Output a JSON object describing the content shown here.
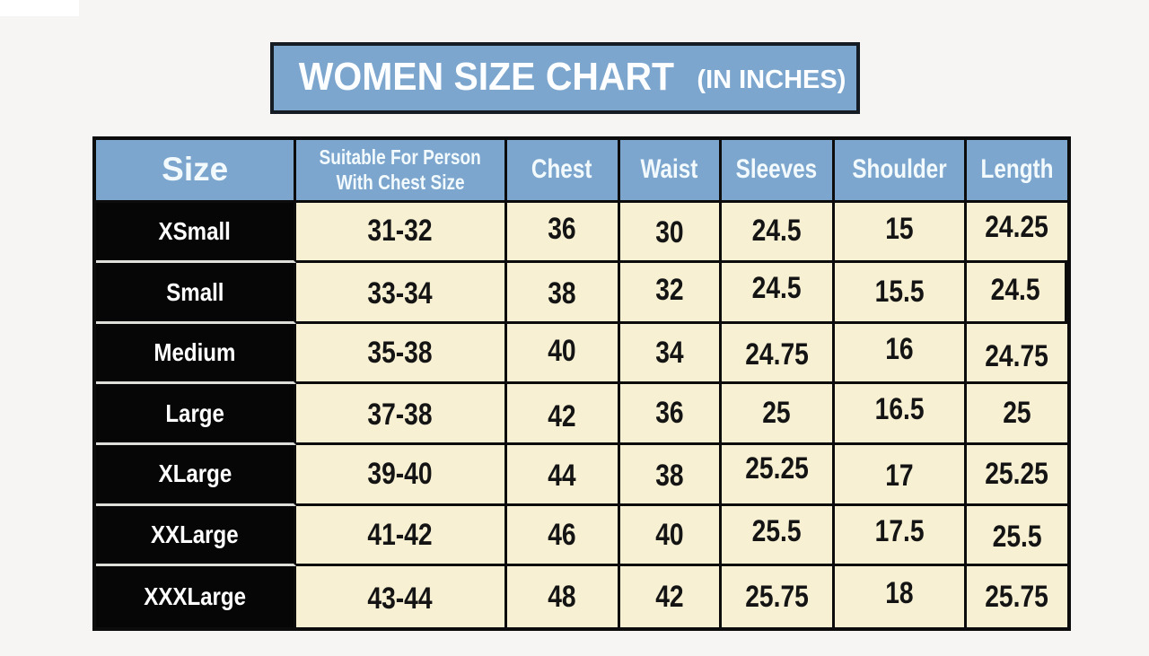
{
  "colors": {
    "page_background": "#f6f5f3",
    "banner_blue": "#7ca6ce",
    "border_dark": "#0c0c0c",
    "size_cell_black": "#060606",
    "value_cell_cream": "#f7f0d2",
    "header_text": "#ffffff",
    "value_text": "#141414"
  },
  "title": {
    "main": "WOMEN SIZE CHART",
    "unit_note": "(IN INCHES)"
  },
  "table": {
    "header": {
      "size": "Size",
      "suitable_line1": "Suitable For Person",
      "suitable_line2": "With Chest Size",
      "chest": "Chest",
      "waist": "Waist",
      "sleeves": "Sleeves",
      "shoulder": "Shoulder",
      "length": "Length"
    },
    "rows": [
      {
        "size": "XSmall",
        "suitable": "31-32",
        "chest": "36",
        "waist": "30",
        "sleeves": "24.5",
        "shoulder": "15",
        "length": "24.25"
      },
      {
        "size": "Small",
        "suitable": "33-34",
        "chest": "38",
        "waist": "32",
        "sleeves": "24.5",
        "shoulder": "15.5",
        "length": "24.5"
      },
      {
        "size": "Medium",
        "suitable": "35-38",
        "chest": "40",
        "waist": "34",
        "sleeves": "24.75",
        "shoulder": "16",
        "length": "24.75"
      },
      {
        "size": "Large",
        "suitable": "37-38",
        "chest": "42",
        "waist": "36",
        "sleeves": "25",
        "shoulder": "16.5",
        "length": "25"
      },
      {
        "size": "XLarge",
        "suitable": "39-40",
        "chest": "44",
        "waist": "38",
        "sleeves": "25.25",
        "shoulder": "17",
        "length": "25.25"
      },
      {
        "size": "XXLarge",
        "suitable": "41-42",
        "chest": "46",
        "waist": "40",
        "sleeves": "25.5",
        "shoulder": "17.5",
        "length": "25.5"
      },
      {
        "size": "XXXLarge",
        "suitable": "43-44",
        "chest": "48",
        "waist": "42",
        "sleeves": "25.75",
        "shoulder": "18",
        "length": "25.75"
      }
    ]
  },
  "chart_data": {
    "type": "table",
    "title": "WOMEN SIZE CHART (IN INCHES)",
    "columns": [
      "Size",
      "Suitable For Person With Chest Size",
      "Chest",
      "Waist",
      "Sleeves",
      "Shoulder",
      "Length"
    ],
    "rows": [
      [
        "XSmall",
        "31-32",
        36,
        30,
        24.5,
        15,
        24.25
      ],
      [
        "Small",
        "33-34",
        38,
        32,
        24.5,
        15.5,
        24.5
      ],
      [
        "Medium",
        "35-38",
        40,
        34,
        24.75,
        16,
        24.75
      ],
      [
        "Large",
        "37-38",
        42,
        36,
        25,
        16.5,
        25
      ],
      [
        "XLarge",
        "39-40",
        44,
        38,
        25.25,
        17,
        25.25
      ],
      [
        "XXLarge",
        "41-42",
        46,
        40,
        25.5,
        17.5,
        25.5
      ],
      [
        "XXXLarge",
        "43-44",
        48,
        42,
        25.75,
        18,
        25.75
      ]
    ]
  }
}
